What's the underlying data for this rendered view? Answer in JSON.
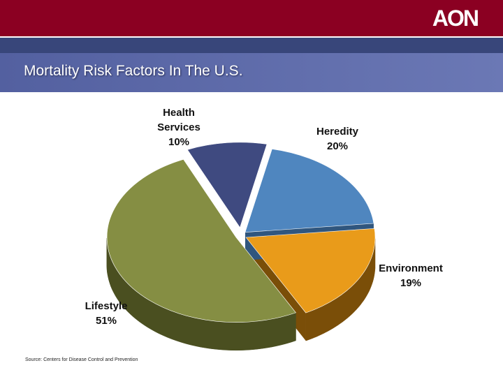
{
  "header": {
    "logo_text": "AON",
    "title": "Mortality Risk Factors In The U.S."
  },
  "colors": {
    "top_bar": "#8b0022",
    "navy_bar": "#38467a",
    "title_bar": "#5f6cab"
  },
  "chart_data": {
    "type": "pie",
    "style": "3d-exploded",
    "slices": [
      {
        "label": [
          "Health",
          "Services"
        ],
        "value": 10,
        "color": "#3f4a80",
        "side_color": "#262d52"
      },
      {
        "label": [
          "Heredity"
        ],
        "value": 20,
        "color": "#4f86bf",
        "side_color": "#30567e"
      },
      {
        "label": [
          "Environment"
        ],
        "value": 19,
        "color": "#e99b1a",
        "side_color": "#7a4e08"
      },
      {
        "label": [
          "Lifestyle"
        ],
        "value": 51,
        "color": "#858e43",
        "side_color": "#4a4f20"
      }
    ]
  },
  "footer": {
    "source": "Source: Centers for Disease Control and Prevention"
  }
}
